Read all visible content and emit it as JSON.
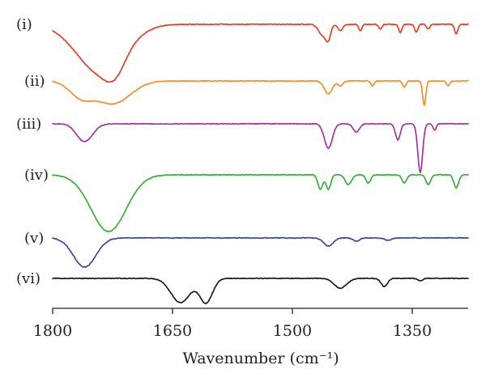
{
  "chart_data": {
    "type": "line",
    "title": "",
    "xlabel": "Wavenumber (cm⁻¹)",
    "ylabel": "",
    "xlim": [
      1800,
      1280
    ],
    "x_reversed": true,
    "x_ticks": [
      1800,
      1650,
      1500,
      1350
    ],
    "y_axis_visible": false,
    "grid": false,
    "series": [
      {
        "name": "(i)",
        "color": "#e8351f",
        "baseline": 1.0,
        "peaks": [
          [
            1740,
            30,
            60
          ],
          [
            1722,
            12,
            18
          ],
          [
            1462,
            5,
            14
          ],
          [
            1455,
            3,
            16
          ],
          [
            1440,
            3,
            8
          ],
          [
            1415,
            2,
            8
          ],
          [
            1390,
            2,
            6
          ],
          [
            1365,
            2,
            10
          ],
          [
            1345,
            2,
            10
          ],
          [
            1330,
            2,
            6
          ],
          [
            1295,
            2,
            12
          ]
        ]
      },
      {
        "name": "(ii)",
        "color": "#f58a1f",
        "baseline": 1.0,
        "peaks": [
          [
            1765,
            14,
            18
          ],
          [
            1725,
            22,
            28
          ],
          [
            1455,
            5,
            16
          ],
          [
            1440,
            3,
            6
          ],
          [
            1400,
            2,
            6
          ],
          [
            1360,
            2,
            8
          ],
          [
            1335,
            2,
            30
          ],
          [
            1305,
            2,
            6
          ]
        ]
      },
      {
        "name": "(iii)",
        "color": "#a02aa0",
        "baseline": 1.0,
        "peaks": [
          [
            1760,
            10,
            22
          ],
          [
            1455,
            5,
            30
          ],
          [
            1420,
            4,
            10
          ],
          [
            1368,
            3,
            20
          ],
          [
            1340,
            3,
            60
          ],
          [
            1322,
            2,
            8
          ]
        ]
      },
      {
        "name": "(iv)",
        "color": "#2faa2f",
        "baseline": 1.0,
        "peaks": [
          [
            1730,
            22,
            70
          ],
          [
            1465,
            3,
            18
          ],
          [
            1455,
            3,
            18
          ],
          [
            1430,
            4,
            12
          ],
          [
            1405,
            3,
            10
          ],
          [
            1360,
            3,
            10
          ],
          [
            1330,
            3,
            12
          ],
          [
            1295,
            3,
            16
          ]
        ]
      },
      {
        "name": "(v)",
        "color": "#2f3fa8",
        "baseline": 1.0,
        "peaks": [
          [
            1760,
            14,
            36
          ],
          [
            1455,
            6,
            10
          ],
          [
            1420,
            4,
            4
          ],
          [
            1380,
            4,
            3
          ]
        ]
      },
      {
        "name": "(vi)",
        "color": "#111111",
        "baseline": 1.0,
        "peaks": [
          [
            1640,
            12,
            30
          ],
          [
            1608,
            8,
            30
          ],
          [
            1440,
            8,
            12
          ],
          [
            1385,
            4,
            10
          ],
          [
            1340,
            3,
            3
          ]
        ]
      }
    ]
  }
}
